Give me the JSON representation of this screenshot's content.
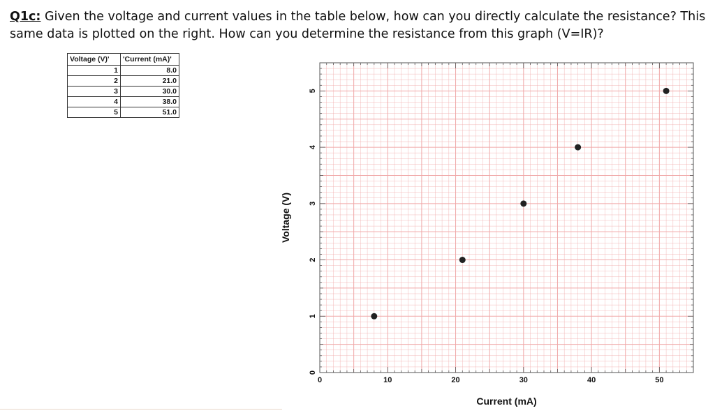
{
  "question": {
    "lead": "Q1c:",
    "text": " Given the voltage and current values in the table below, how can you directly calculate the resistance? This same data is plotted on the right. How can you determine the resistance from this graph (V=IR)?"
  },
  "table": {
    "headers": [
      "Voltage (V)'",
      "'Current (mA)'"
    ],
    "rows": [
      [
        "1",
        "8.0"
      ],
      [
        "2",
        "21.0"
      ],
      [
        "3",
        "30.0"
      ],
      [
        "4",
        "38.0"
      ],
      [
        "5",
        "51.0"
      ]
    ]
  },
  "chart_data": {
    "type": "scatter",
    "xlabel": "Current (mA)",
    "ylabel": "Voltage (V)",
    "xlim": [
      0,
      55
    ],
    "ylim": [
      0,
      5.5
    ],
    "xticks": [
      "0",
      "10",
      "20",
      "30",
      "40",
      "50"
    ],
    "yticks": [
      "0",
      "1",
      "2",
      "3",
      "4",
      "5"
    ],
    "grid": true,
    "grid_color": "#f0a8a8",
    "point_color": "#222222",
    "series": [
      {
        "x": [
          8.0,
          21.0,
          30.0,
          38.0,
          51.0
        ],
        "y": [
          1,
          2,
          3,
          4,
          5
        ]
      }
    ]
  }
}
